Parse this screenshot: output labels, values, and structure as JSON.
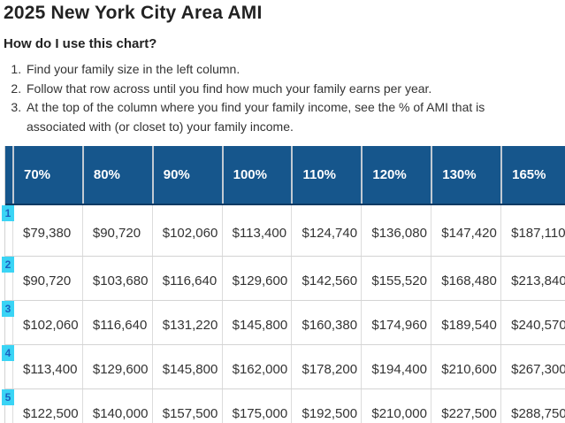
{
  "page": {
    "title": "2025 New York City Area AMI",
    "question": "How do I use this chart?",
    "instructions": [
      "Find your family size in the left column.",
      "Follow that row across until you find how much your family earns per year.",
      "At the top of the column where you find your family income, see the % of AMI that is associated with (or closet to) your family income."
    ]
  },
  "colors": {
    "header_bg": "#16568C",
    "header_text": "#FFFFFF",
    "header_bottom_border": "#0D3A63",
    "grid_line": "#D4D4D4",
    "highlight_bg": "#3AD4F5",
    "highlight_text": "#1B62C1",
    "body_text": "#333333"
  },
  "chart_data": {
    "type": "table",
    "columns": [
      "70%",
      "80%",
      "90%",
      "100%",
      "110%",
      "120%",
      "130%",
      "165%"
    ],
    "rows": [
      {
        "family_size": "1",
        "values": [
          "$79,380",
          "$90,720",
          "$102,060",
          "$113,400",
          "$124,740",
          "$136,080",
          "$147,420",
          "$187,110"
        ]
      },
      {
        "family_size": "2",
        "values": [
          "$90,720",
          "$103,680",
          "$116,640",
          "$129,600",
          "$142,560",
          "$155,520",
          "$168,480",
          "$213,840"
        ]
      },
      {
        "family_size": "3",
        "values": [
          "$102,060",
          "$116,640",
          "$131,220",
          "$145,800",
          "$160,380",
          "$174,960",
          "$189,540",
          "$240,570"
        ]
      },
      {
        "family_size": "4",
        "values": [
          "$113,400",
          "$129,600",
          "$145,800",
          "$162,000",
          "$178,200",
          "$194,400",
          "$210,600",
          "$267,300"
        ]
      },
      {
        "family_size": "5",
        "values": [
          "$122,500",
          "$140,000",
          "$157,500",
          "$175,000",
          "$192,500",
          "$210,000",
          "$227,500",
          "$288,750"
        ]
      }
    ]
  }
}
